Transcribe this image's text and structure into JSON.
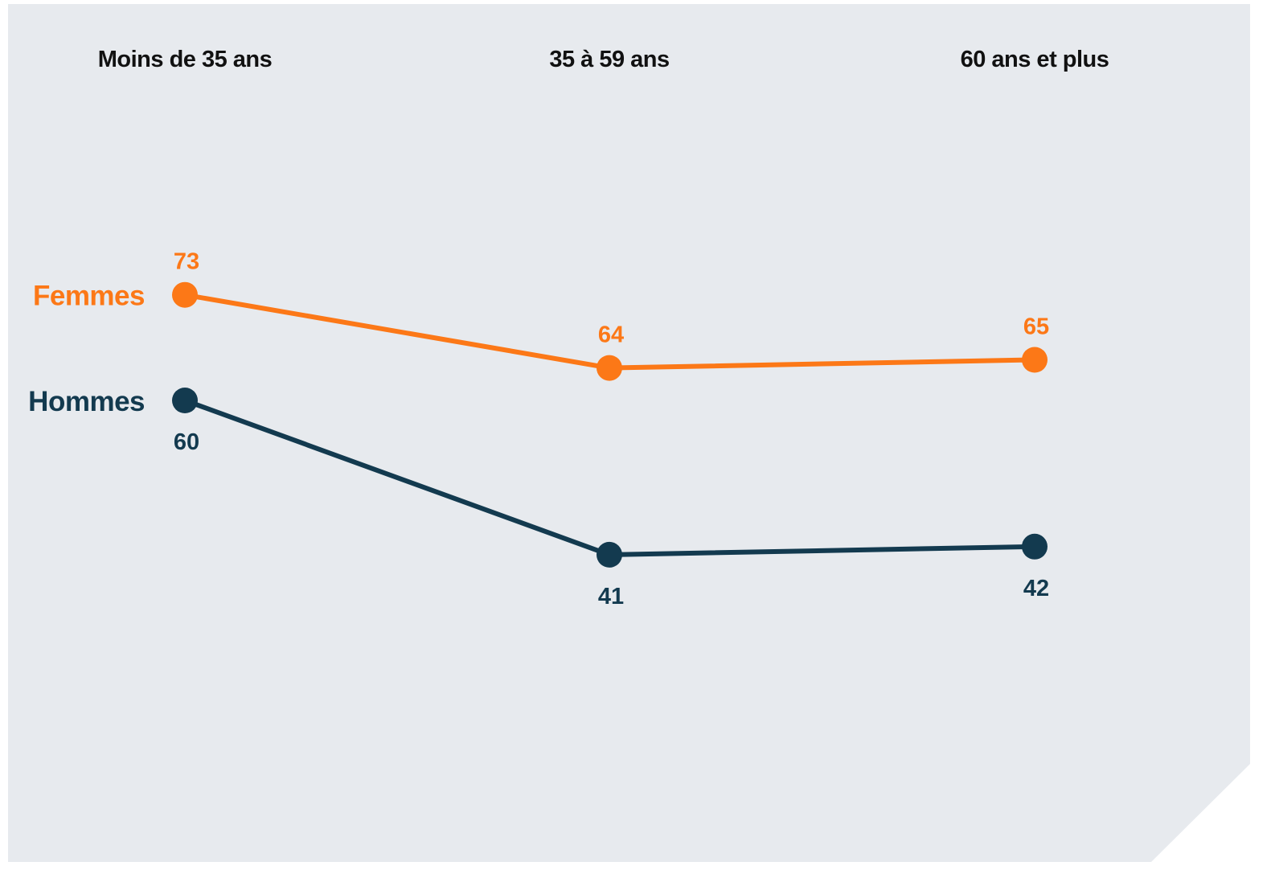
{
  "colors": {
    "background": "#e7eaee",
    "femmes": "#fc7817",
    "hommes": "#133a4f"
  },
  "chart_data": {
    "type": "line",
    "categories": [
      "Moins de 35 ans",
      "35 à 59 ans",
      "60 ans et plus"
    ],
    "series": [
      {
        "name": "Femmes",
        "values": [
          73,
          64,
          65
        ],
        "color": "#fc7817",
        "label_position": "above"
      },
      {
        "name": "Hommes",
        "values": [
          60,
          41,
          42
        ],
        "color": "#133a4f",
        "label_position": "below"
      }
    ],
    "title": "",
    "xlabel": "",
    "ylabel": "",
    "ylim": [
      20,
      95
    ],
    "grid": false,
    "legend": "left, inline at first point",
    "data_labels": true,
    "marker": "circle"
  }
}
